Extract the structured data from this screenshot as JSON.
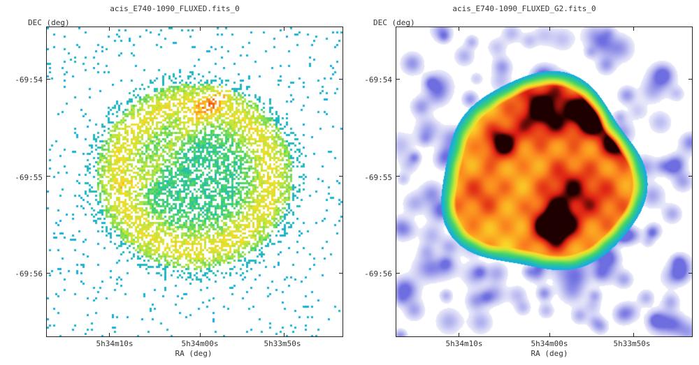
{
  "panels": [
    {
      "title": "acis_E740-1090_FLUXED.fits_0",
      "ylabel": "DEC (deg)",
      "xlabel": "RA (deg)",
      "yticks": [
        "-69:54",
        "-69:55",
        "-69:56"
      ],
      "xticks": [
        "5h34m10s",
        "5h34m00s",
        "5h33m50s"
      ],
      "image_style": "raw-counts-scatter"
    },
    {
      "title": "acis_E740-1090_FLUXED_G2.fits_0",
      "ylabel": "DEC (deg)",
      "xlabel": "RA (deg)",
      "yticks": [
        "-69:54",
        "-69:55",
        "-69:56"
      ],
      "xticks": [
        "5h34m10s",
        "5h34m00s",
        "5h33m50s"
      ],
      "image_style": "gaussian-smoothed"
    }
  ],
  "colors": {
    "frame": "#222222",
    "background": "#ffffff",
    "low": "#5a5ad8",
    "mid": "#3fd06a",
    "high": "#f0e040",
    "peak": "#d01818"
  }
}
